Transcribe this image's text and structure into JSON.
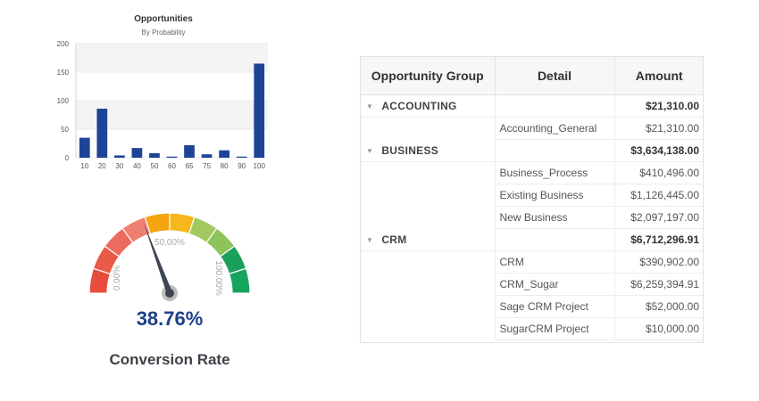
{
  "chart_data": {
    "type": "bar",
    "title": "Opportunities",
    "subtitle": "By Probability",
    "categories": [
      "10",
      "20",
      "30",
      "40",
      "50",
      "60",
      "65",
      "75",
      "80",
      "90",
      "100"
    ],
    "values": [
      35,
      86,
      4,
      17,
      8,
      2,
      22,
      6,
      13,
      2,
      165
    ],
    "ylim": [
      0,
      200
    ],
    "yticks": [
      0,
      50,
      100,
      150,
      200
    ],
    "color": "#1d4496",
    "grid": true
  },
  "gauge": {
    "value": 38.76,
    "value_label": "38.76%",
    "title": "Conversion Rate",
    "min_label": "0.00%",
    "mid_label": "50.00%",
    "max_label": "100.00%",
    "band_colors": [
      "#e84c3d",
      "#e95a47",
      "#ec6b5d",
      "#ee7f71",
      "#f3a40f",
      "#f6b71a",
      "#a3c85e",
      "#8ec25a",
      "#1aa05a",
      "#16a35e"
    ]
  },
  "table": {
    "headers": [
      "Opportunity Group",
      "Detail",
      "Amount"
    ],
    "groups": [
      {
        "name": "ACCOUNTING",
        "total": "$21,310.00",
        "rows": [
          {
            "detail": "Accounting_General",
            "amount": "$21,310.00"
          }
        ]
      },
      {
        "name": "BUSINESS",
        "total": "$3,634,138.00",
        "rows": [
          {
            "detail": "Business_Process",
            "amount": "$410,496.00"
          },
          {
            "detail": "Existing Business",
            "amount": "$1,126,445.00"
          },
          {
            "detail": "New Business",
            "amount": "$2,097,197.00"
          }
        ]
      },
      {
        "name": "CRM",
        "total": "$6,712,296.91",
        "rows": [
          {
            "detail": "CRM",
            "amount": "$390,902.00"
          },
          {
            "detail": "CRM_Sugar",
            "amount": "$6,259,394.91"
          },
          {
            "detail": "Sage CRM Project",
            "amount": "$52,000.00"
          },
          {
            "detail": "SugarCRM Project",
            "amount": "$10,000.00"
          }
        ]
      }
    ]
  }
}
